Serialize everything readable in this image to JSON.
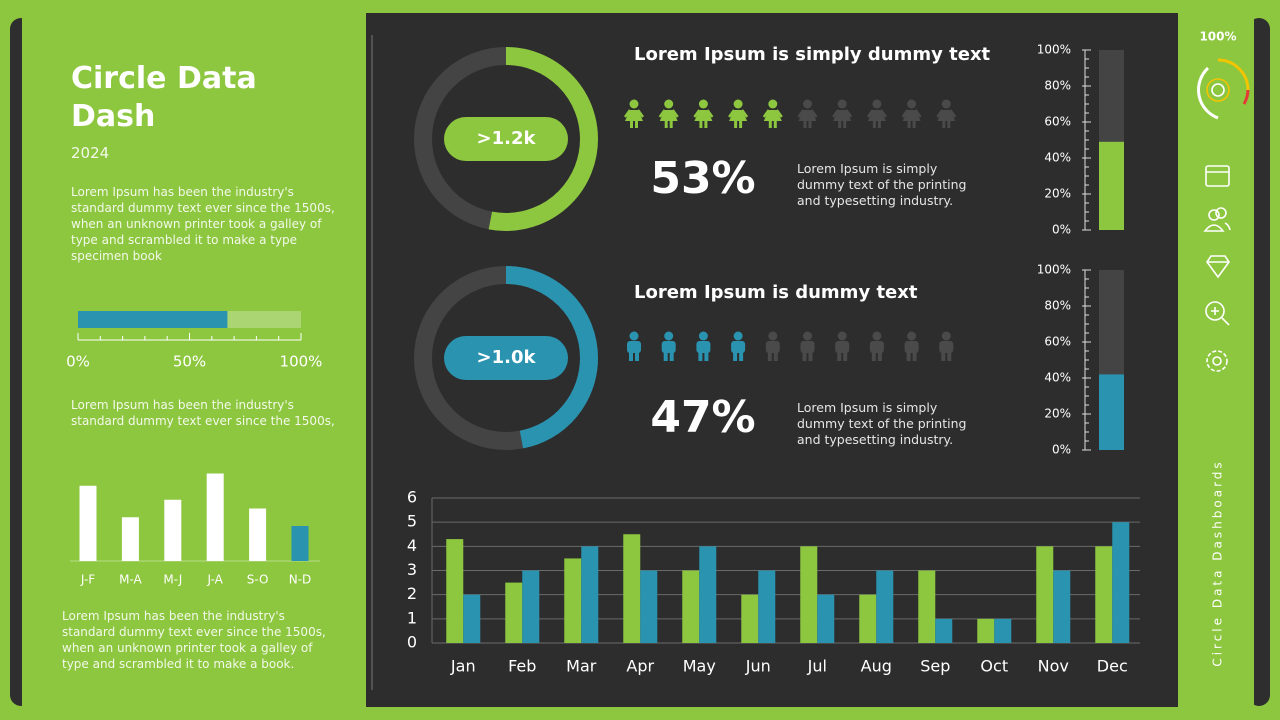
{
  "header": {
    "title": "Circle Data Dash",
    "year": "2024",
    "text1": "Lorem Ipsum has been the industry's standard dummy text ever since the 1500s, when an unknown printer took a galley of type and scrambled it to make a type specimen book",
    "text2": "Lorem Ipsum has been the industry's standard dummy text ever since the 1500s,",
    "text3": "Lorem Ipsum has been the industry's standard dummy text ever since the 1500s, when an unknown printer took a galley of type and scrambled it to make a book."
  },
  "sidebar": {
    "gauge_label": "100%",
    "vertical_text": "Circle Data Dashboards"
  },
  "chart_data": [
    {
      "type": "progress",
      "value": 67,
      "xlim": [
        0,
        100
      ],
      "xticks": [
        {
          "value": 0,
          "label": "0%"
        },
        {
          "value": 50,
          "label": "50%"
        },
        {
          "value": 100,
          "label": "100%"
        }
      ],
      "color": "#2a93b0",
      "track_color": "#aad572"
    },
    {
      "type": "bar",
      "categories": [
        "J-F",
        "M-A",
        "M-J",
        "J-A",
        "S-O",
        "N-D"
      ],
      "values": [
        4.3,
        2.5,
        3.5,
        5,
        3,
        2
      ],
      "colors": [
        "#ffffff",
        "#ffffff",
        "#ffffff",
        "#ffffff",
        "#ffffff",
        "#2a93b0"
      ]
    },
    {
      "type": "donut",
      "title": "Lorem Ipsum is simply dummy text",
      "value": 53,
      "value_label": "53%",
      "center_label": ">1.2k",
      "icons_total": 10,
      "icons_filled": 5,
      "icon": "female",
      "description": "Lorem Ipsum is simply dummy text of the printing and typesetting industry.",
      "color": "#8dc63f"
    },
    {
      "type": "vbar",
      "value": 49,
      "ylim": [
        0,
        100
      ],
      "yticks": [
        {
          "value": 0,
          "label": "0%"
        },
        {
          "value": 20,
          "label": "20%"
        },
        {
          "value": 40,
          "label": "40%"
        },
        {
          "value": 60,
          "label": "60%"
        },
        {
          "value": 80,
          "label": "80%"
        },
        {
          "value": 100,
          "label": "100%"
        }
      ],
      "color": "#8dc63f"
    },
    {
      "type": "donut",
      "title": "Lorem Ipsum is dummy text",
      "value": 47,
      "value_label": "47%",
      "center_label": ">1.0k",
      "icons_total": 10,
      "icons_filled": 4,
      "icon": "male",
      "description": "Lorem Ipsum is simply dummy text of the printing and typesetting industry.",
      "color": "#2a93b0"
    },
    {
      "type": "vbar",
      "value": 42,
      "ylim": [
        0,
        100
      ],
      "yticks": [
        {
          "value": 0,
          "label": "0%"
        },
        {
          "value": 20,
          "label": "20%"
        },
        {
          "value": 40,
          "label": "40%"
        },
        {
          "value": 60,
          "label": "60%"
        },
        {
          "value": 80,
          "label": "80%"
        },
        {
          "value": 100,
          "label": "100%"
        }
      ],
      "color": "#2a93b0"
    },
    {
      "type": "grouped_bar",
      "categories": [
        "Jan",
        "Feb",
        "Mar",
        "Apr",
        "May",
        "Jun",
        "Jul",
        "Aug",
        "Sep",
        "Oct",
        "Nov",
        "Dec"
      ],
      "series": [
        {
          "color": "#8dc63f",
          "values": [
            4.3,
            2.5,
            3.5,
            4.5,
            3,
            2,
            4,
            2,
            3,
            1,
            4,
            4
          ]
        },
        {
          "color": "#2a93b0",
          "values": [
            2,
            3,
            4,
            3,
            4,
            3,
            2,
            3,
            1,
            1,
            3,
            5
          ]
        }
      ],
      "ylim": [
        0,
        6
      ],
      "yticks": [
        0,
        1,
        2,
        3,
        4,
        5,
        6
      ],
      "grid": true
    }
  ]
}
